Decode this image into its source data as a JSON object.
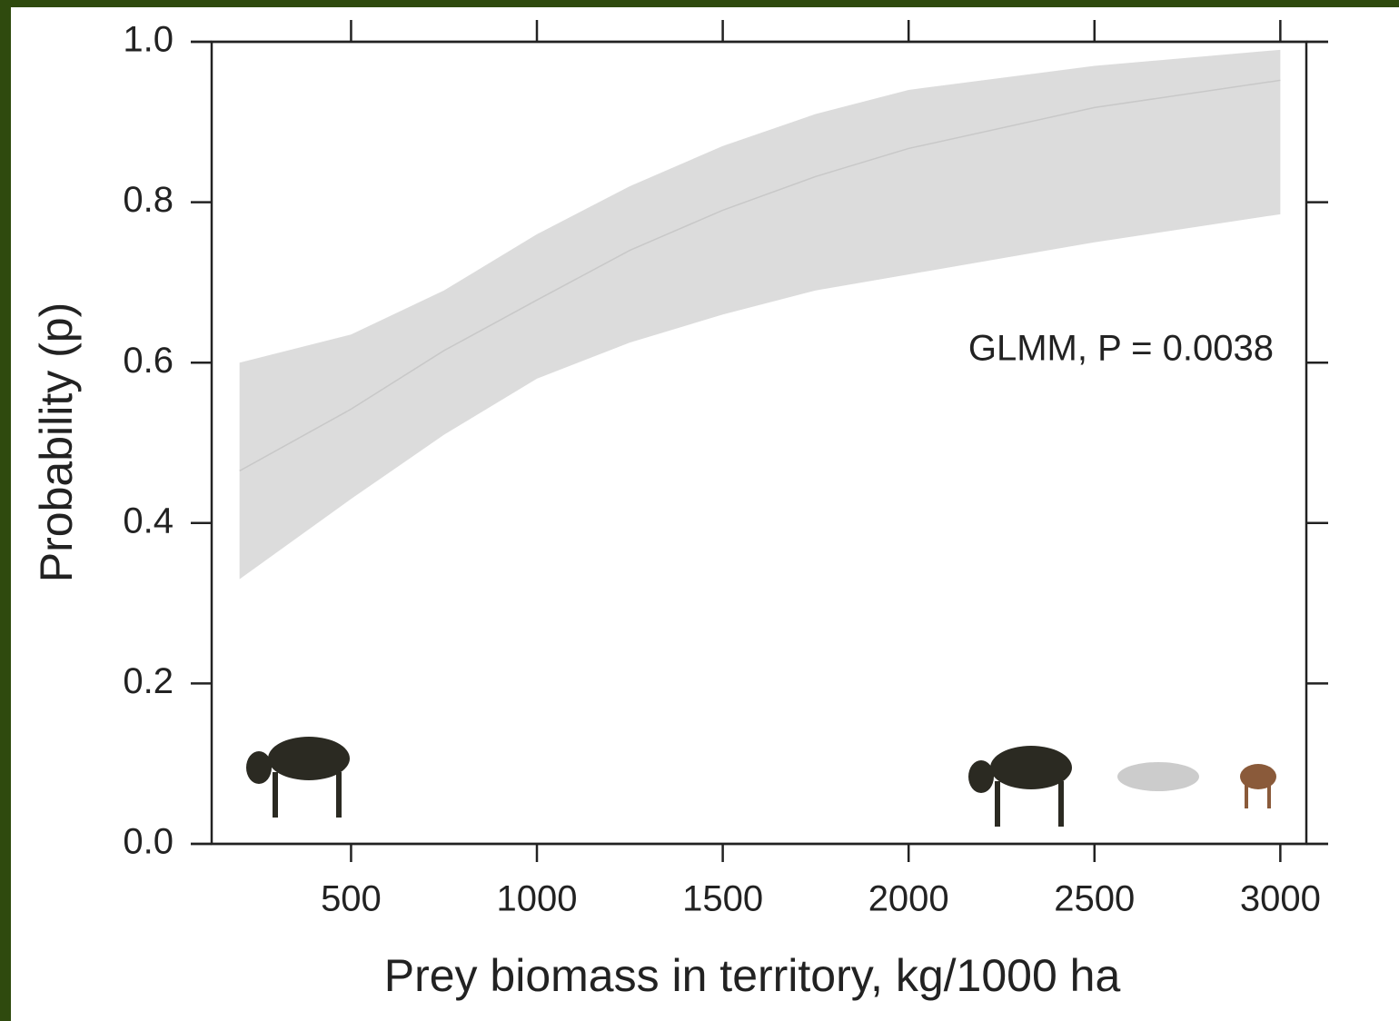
{
  "chart_data": {
    "type": "line",
    "xlabel": "Prey biomass in territory, kg/1000 ha",
    "ylabel": "Probability (p)",
    "annotation": "GLMM, P = 0.0038",
    "x": [
      200,
      500,
      750,
      1000,
      1250,
      1500,
      1750,
      2000,
      2500,
      3000
    ],
    "values": [
      0.465,
      0.542,
      0.615,
      0.678,
      0.74,
      0.79,
      0.832,
      0.867,
      0.918,
      0.952
    ],
    "upper": [
      0.6,
      0.635,
      0.69,
      0.76,
      0.82,
      0.87,
      0.91,
      0.94,
      0.97,
      0.99
    ],
    "lower": [
      0.33,
      0.43,
      0.51,
      0.58,
      0.625,
      0.66,
      0.69,
      0.71,
      0.75,
      0.785
    ],
    "color": "#c8c8c8",
    "band_color": "#dcdcdc",
    "xlim": [
      125,
      3070
    ],
    "xticks": [
      500,
      1000,
      1500,
      2000,
      2500,
      3000
    ],
    "ylim": [
      0,
      1
    ],
    "yticks": [
      {
        "value": 0,
        "label": "0.0"
      },
      {
        "value": 0.2,
        "label": "0.2"
      },
      {
        "value": 0.4,
        "label": "0.4"
      },
      {
        "value": 0.6,
        "label": "0.6"
      },
      {
        "value": 0.8,
        "label": "0.8"
      },
      {
        "value": 1,
        "label": "1.0"
      }
    ]
  }
}
